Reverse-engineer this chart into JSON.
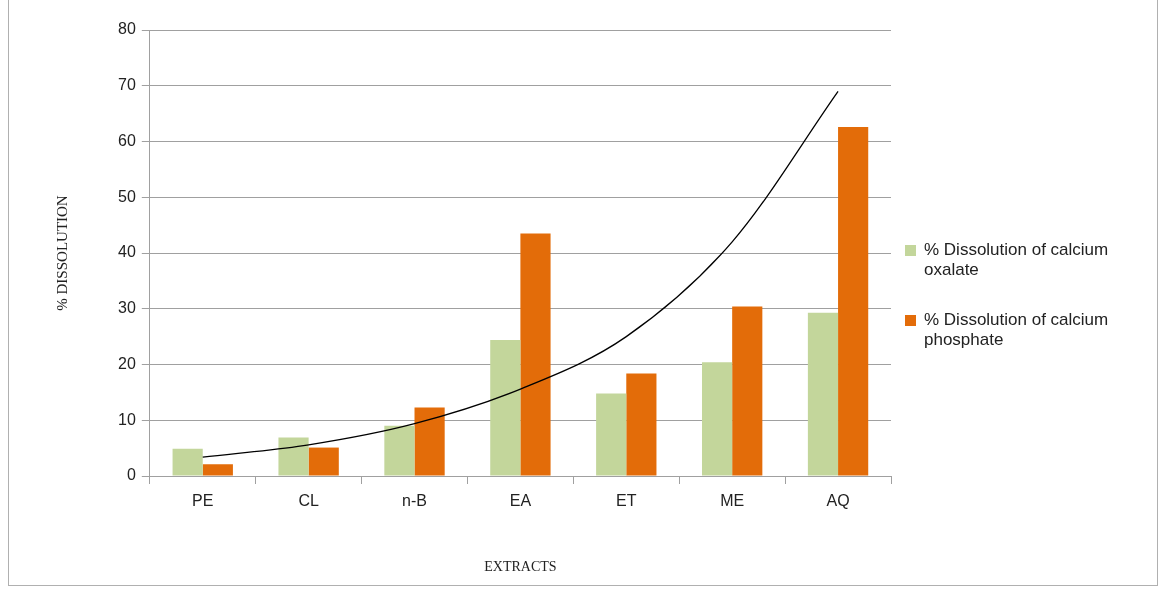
{
  "chart_data": {
    "type": "bar",
    "xlabel": "EXTRACTS",
    "ylabel": "% DISSOLUTION",
    "categories": [
      "PE",
      "CL",
      "n-B",
      "EA",
      "ET",
      "ME",
      "AQ"
    ],
    "series": [
      {
        "name": "% Dissolution of calcium oxalate",
        "color": "#c3d69b",
        "values": [
          4.9,
          6.9,
          9.0,
          24.4,
          14.8,
          20.4,
          29.3
        ]
      },
      {
        "name": "% Dissolution of calcium phosphate",
        "color": "#e36c09",
        "values": [
          2.1,
          5.1,
          12.3,
          43.5,
          18.4,
          30.4,
          62.6
        ]
      },
      {
        "type": "line",
        "color": "#000000",
        "values": [
          3.4,
          5.6,
          9.4,
          15.6,
          25,
          42,
          69
        ]
      }
    ],
    "ylim": [
      0,
      80
    ],
    "yticks": [
      0,
      10,
      20,
      30,
      40,
      50,
      60,
      70,
      80
    ],
    "grid": "y",
    "legend": "right"
  }
}
